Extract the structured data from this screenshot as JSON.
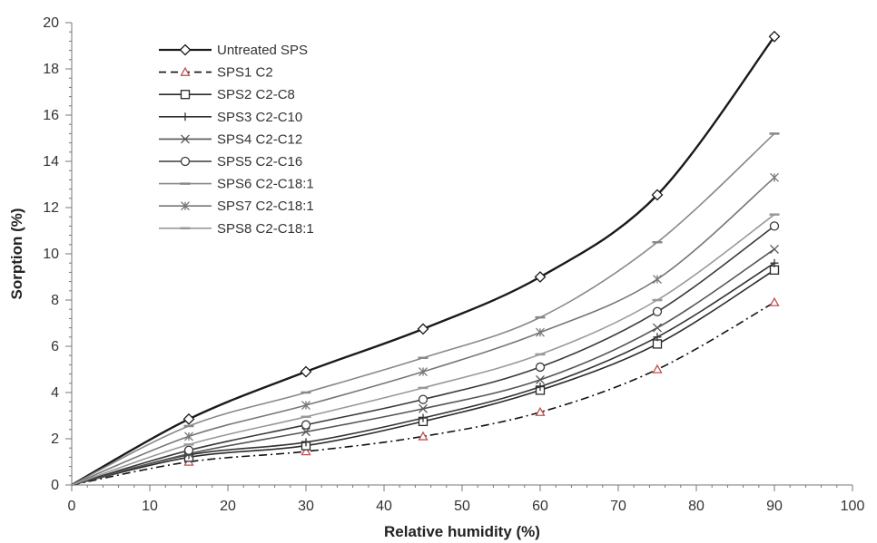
{
  "chart_data": {
    "type": "line",
    "title": "",
    "xlabel": "Relative humidity (%)",
    "ylabel": "Sorption (%)",
    "xlim": [
      0,
      100
    ],
    "ylim": [
      0,
      20
    ],
    "xticks": [
      0,
      10,
      20,
      30,
      40,
      50,
      60,
      70,
      80,
      90,
      100
    ],
    "yticks": [
      0,
      2,
      4,
      6,
      8,
      10,
      12,
      14,
      16,
      18,
      20
    ],
    "grid": false,
    "legend_position": "top-left",
    "x": [
      0,
      15,
      30,
      45,
      60,
      75,
      90
    ],
    "series": [
      {
        "name": "Untreated SPS",
        "marker": "diamond",
        "dash": "solid",
        "color": "#1a1a1a",
        "values": [
          0,
          2.85,
          4.9,
          6.75,
          9.0,
          12.55,
          19.4
        ]
      },
      {
        "name": "SPS1 C2",
        "marker": "triangle",
        "dash": "dashdot",
        "color": "#111111",
        "marker_color": "#c05050",
        "values": [
          0,
          1.0,
          1.45,
          2.1,
          3.15,
          5.0,
          7.9
        ]
      },
      {
        "name": "SPS2 C2-C8",
        "marker": "square",
        "dash": "solid",
        "color": "#2a2a2a",
        "values": [
          0,
          1.2,
          1.7,
          2.75,
          4.1,
          6.1,
          9.3
        ]
      },
      {
        "name": "SPS3 C2-C10",
        "marker": "plus",
        "dash": "solid",
        "color": "#333333",
        "values": [
          0,
          1.3,
          1.85,
          2.9,
          4.25,
          6.4,
          9.6
        ]
      },
      {
        "name": "SPS4 C2-C12",
        "marker": "x",
        "dash": "solid",
        "color": "#555555",
        "values": [
          0,
          1.35,
          2.3,
          3.3,
          4.55,
          6.8,
          10.2
        ]
      },
      {
        "name": "SPS5 C2-C16",
        "marker": "circle",
        "dash": "solid",
        "color": "#3a3a3a",
        "values": [
          0,
          1.5,
          2.6,
          3.7,
          5.1,
          7.5,
          11.2
        ]
      },
      {
        "name": "SPS6 C2-C18:1",
        "marker": "dash",
        "dash": "solid",
        "color": "#888888",
        "values": [
          0,
          2.55,
          4.0,
          5.5,
          7.25,
          10.5,
          15.2
        ]
      },
      {
        "name": "SPS7 C2-C18:1",
        "marker": "star",
        "dash": "solid",
        "color": "#777777",
        "values": [
          0,
          2.1,
          3.45,
          4.9,
          6.6,
          8.9,
          13.3
        ]
      },
      {
        "name": "SPS8 C2-C18:1",
        "marker": "dash",
        "dash": "solid",
        "color": "#999999",
        "values": [
          0,
          1.75,
          2.95,
          4.2,
          5.65,
          8.0,
          11.7
        ]
      }
    ]
  }
}
